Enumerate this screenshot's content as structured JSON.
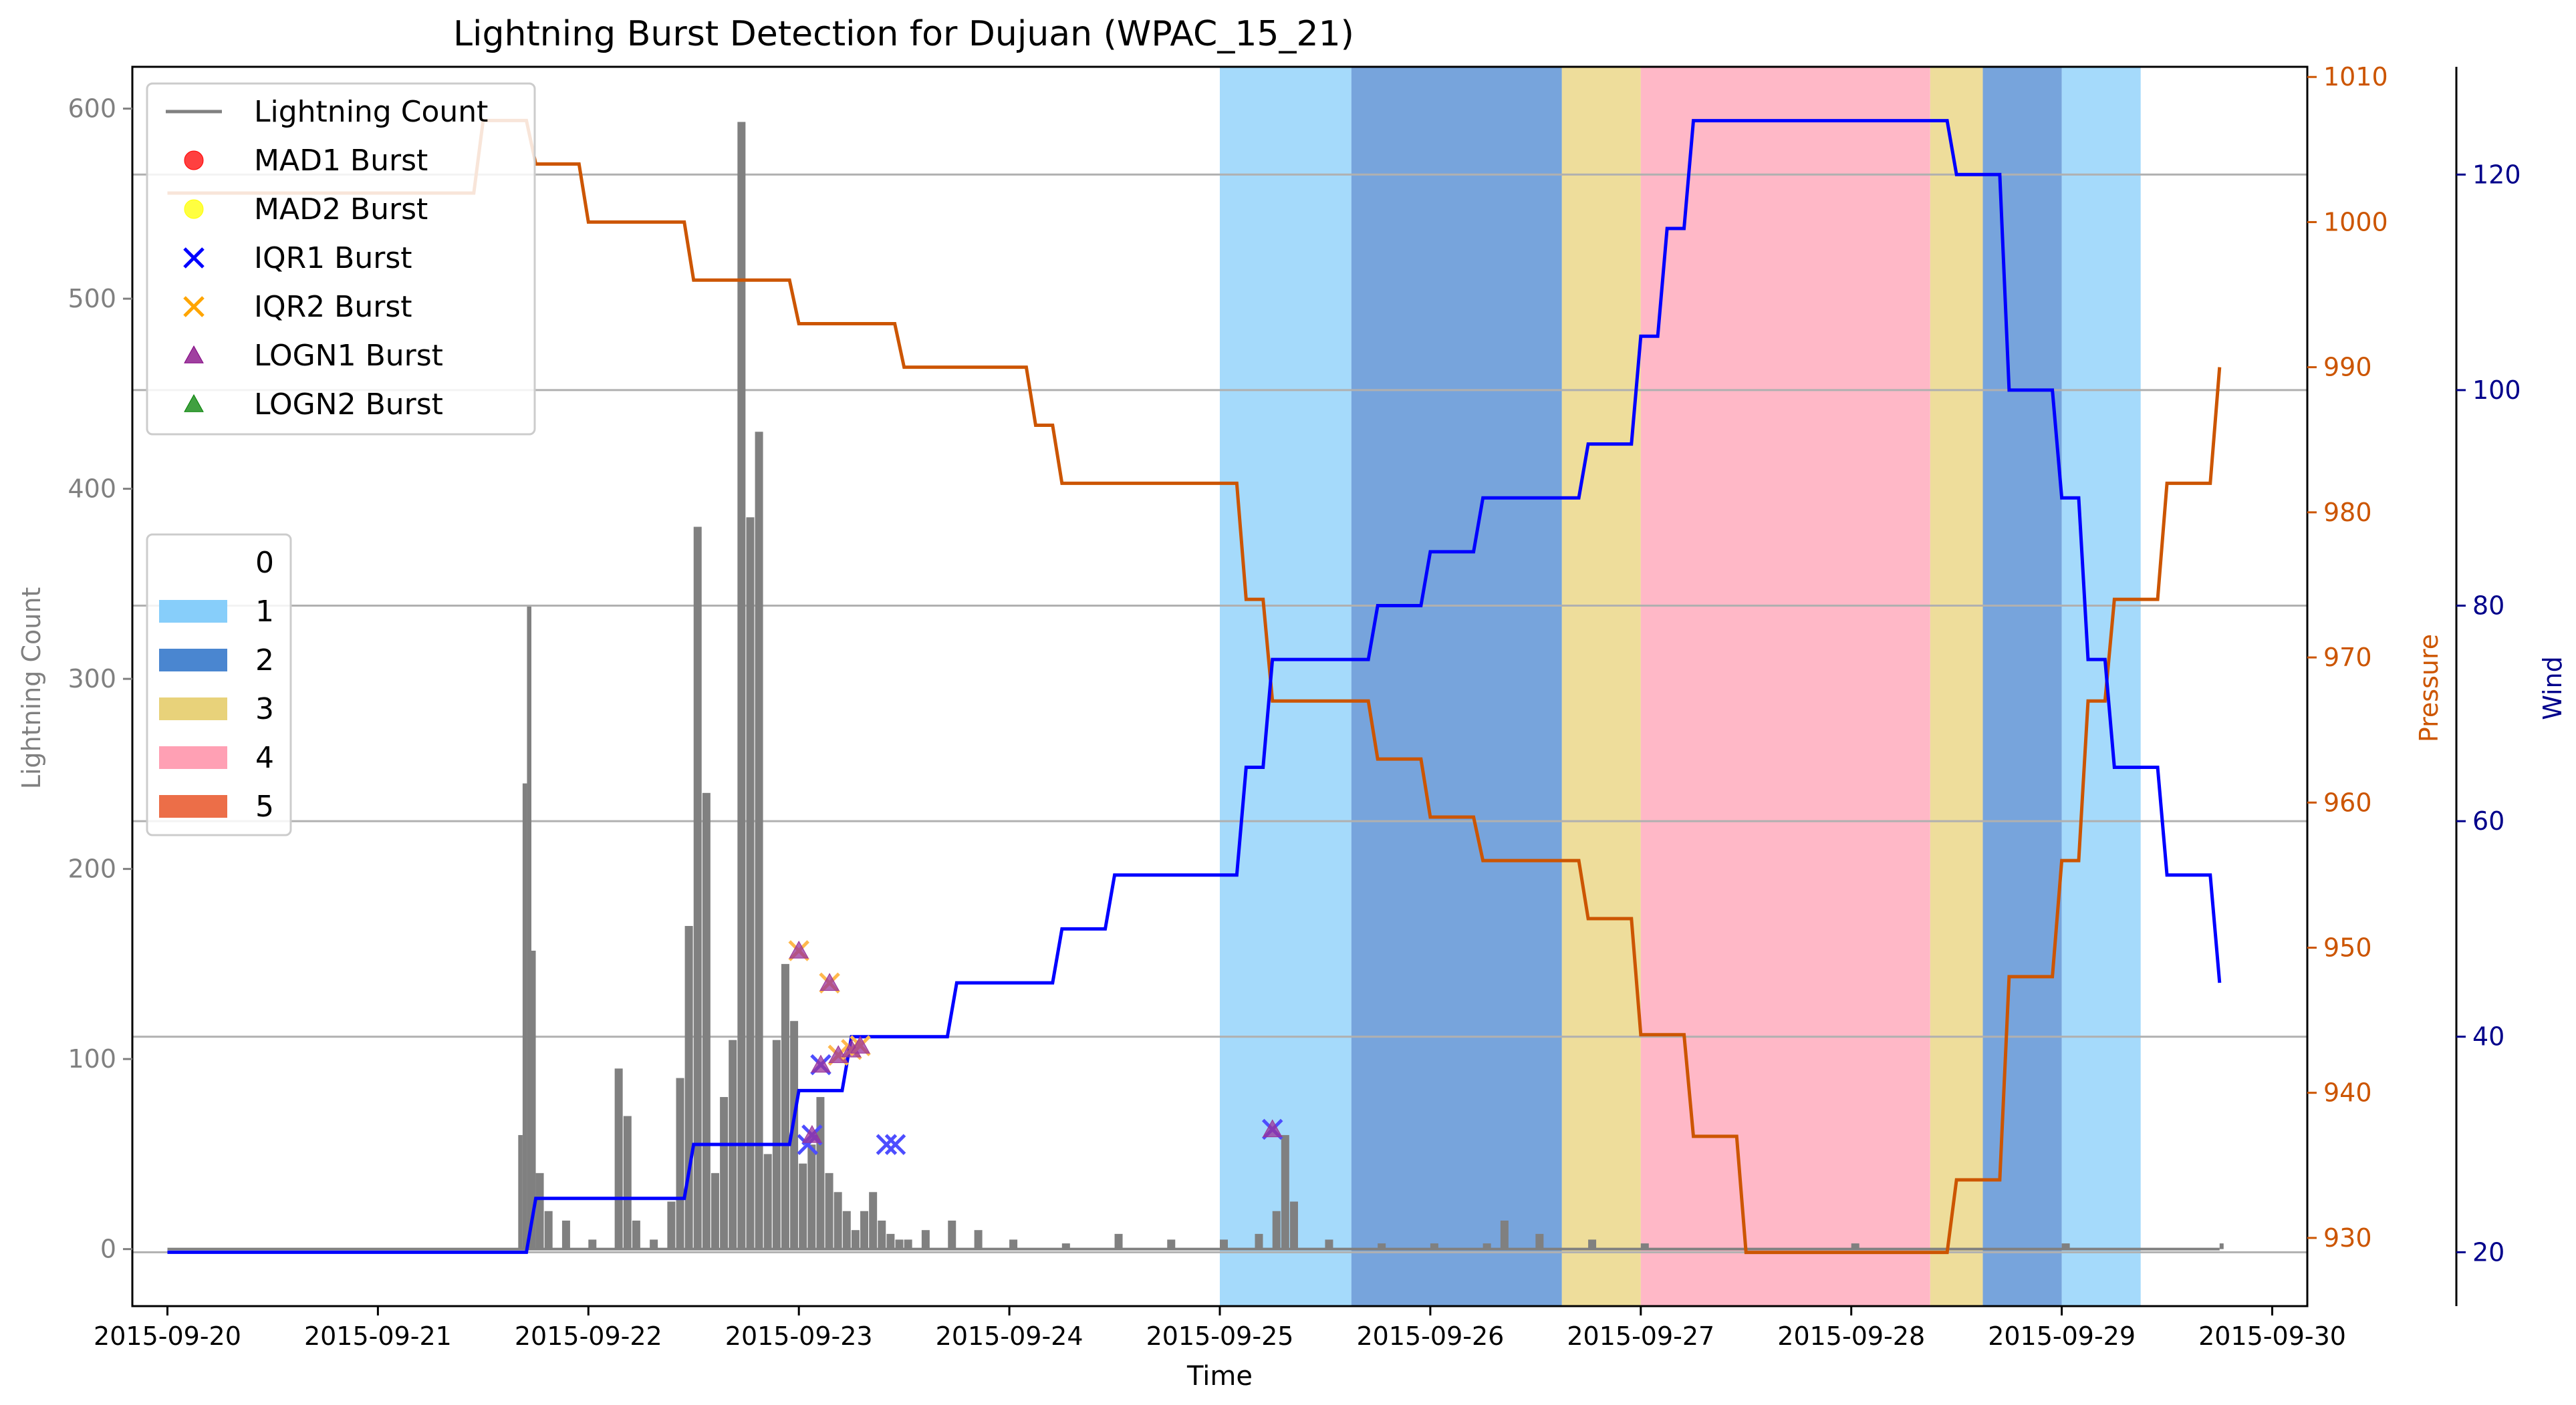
{
  "chart_data": {
    "type": "line",
    "title": "Lightning Burst Detection for Dujuan (WPAC_15_21)",
    "xlabel": "Time",
    "x_ticks": [
      "2015-09-20",
      "2015-09-21",
      "2015-09-22",
      "2015-09-23",
      "2015-09-24",
      "2015-09-25",
      "2015-09-26",
      "2015-09-27",
      "2015-09-28",
      "2015-09-29",
      "2015-09-30"
    ],
    "x_range": [
      "2015-09-19T20:00",
      "2015-09-30T04:00"
    ],
    "axes": {
      "left": {
        "label": "Lightning Count",
        "range": [
          -30,
          622
        ],
        "ticks": [
          0,
          100,
          200,
          300,
          400,
          500,
          600
        ],
        "color": "#808080"
      },
      "right1": {
        "label": "Pressure",
        "range": [
          925.3,
          1010.7
        ],
        "ticks": [
          930,
          940,
          950,
          960,
          970,
          980,
          990,
          1000,
          1010
        ],
        "color": "#cc5500"
      },
      "right2": {
        "label": "Wind",
        "range": [
          15,
          130
        ],
        "ticks": [
          20,
          40,
          60,
          80,
          100,
          120
        ],
        "color": "#00008b"
      }
    },
    "grid": "horizontal lines at Wind ticks",
    "legend_top_left": [
      {
        "label": "Lightning Count",
        "marker": "line",
        "color": "#808080"
      },
      {
        "label": "MAD1 Burst",
        "marker": "circle",
        "color": "#ff0000"
      },
      {
        "label": "MAD2 Burst",
        "marker": "circle",
        "color": "#ffff00"
      },
      {
        "label": "IQR1 Burst",
        "marker": "x",
        "color": "#0000ff"
      },
      {
        "label": "IQR2 Burst",
        "marker": "x",
        "color": "#ffa500"
      },
      {
        "label": "LOGN1 Burst",
        "marker": "triangle",
        "color": "#800080"
      },
      {
        "label": "LOGN2 Burst",
        "marker": "triangle",
        "color": "#008000"
      }
    ],
    "legend_categories": [
      {
        "label": "0",
        "color": "#ffffff"
      },
      {
        "label": "1",
        "color": "#87cefa"
      },
      {
        "label": "2",
        "color": "#4a86d0"
      },
      {
        "label": "3",
        "color": "#e8d27a"
      },
      {
        "label": "4",
        "color": "#ffa0b4"
      },
      {
        "label": "5",
        "color": "#ec6e48"
      }
    ],
    "category_spans": [
      {
        "start": "2015-09-25T00:00",
        "end": "2015-09-25T15:00",
        "category": 1
      },
      {
        "start": "2015-09-25T15:00",
        "end": "2015-09-26T15:00",
        "category": 2
      },
      {
        "start": "2015-09-26T15:00",
        "end": "2015-09-27T00:00",
        "category": 3
      },
      {
        "start": "2015-09-27T00:00",
        "end": "2015-09-28T09:00",
        "category": 4
      },
      {
        "start": "2015-09-28T09:00",
        "end": "2015-09-28T15:00",
        "category": 3
      },
      {
        "start": "2015-09-28T15:00",
        "end": "2015-09-29T00:00",
        "category": 2
      },
      {
        "start": "2015-09-29T00:00",
        "end": "2015-09-29T09:00",
        "category": 1
      }
    ],
    "pressure_series": {
      "name": "Pressure",
      "color": "#cc5500",
      "x": [
        "2015-09-20T00:00",
        "2015-09-21T06:00",
        "2015-09-21T12:00",
        "2015-09-21T18:00",
        "2015-09-22T00:00",
        "2015-09-22T06:00",
        "2015-09-22T12:00",
        "2015-09-22T18:00",
        "2015-09-23T00:00",
        "2015-09-23T06:00",
        "2015-09-23T12:00",
        "2015-09-23T18:00",
        "2015-09-24T00:00",
        "2015-09-24T03:00",
        "2015-09-24T06:00",
        "2015-09-24T12:00",
        "2015-09-24T18:00",
        "2015-09-25T00:00",
        "2015-09-25T03:00",
        "2015-09-25T06:00",
        "2015-09-25T12:00",
        "2015-09-25T18:00",
        "2015-09-26T00:00",
        "2015-09-26T06:00",
        "2015-09-26T12:00",
        "2015-09-26T18:00",
        "2015-09-27T00:00",
        "2015-09-27T03:00",
        "2015-09-27T06:00",
        "2015-09-27T12:00",
        "2015-09-27T18:00",
        "2015-09-28T00:00",
        "2015-09-28T06:00",
        "2015-09-28T12:00",
        "2015-09-28T18:00",
        "2015-09-29T00:00",
        "2015-09-29T03:00",
        "2015-09-29T06:00",
        "2015-09-29T12:00",
        "2015-09-29T18:00"
      ],
      "values": [
        1002,
        1002,
        1007,
        1004,
        1000,
        1000,
        996,
        996,
        993,
        993,
        990,
        990,
        990,
        986,
        982,
        982,
        982,
        982,
        974,
        967,
        967,
        963,
        959,
        956,
        956,
        952,
        944,
        944,
        937,
        929,
        929,
        929,
        929,
        934,
        948,
        956,
        967,
        974,
        982,
        990
      ]
    },
    "wind_series": {
      "name": "Wind",
      "color": "#0000ff",
      "x": [
        "2015-09-20T00:00",
        "2015-09-21T06:00",
        "2015-09-21T12:00",
        "2015-09-21T18:00",
        "2015-09-22T00:00",
        "2015-09-22T06:00",
        "2015-09-22T12:00",
        "2015-09-22T18:00",
        "2015-09-23T00:00",
        "2015-09-23T06:00",
        "2015-09-23T12:00",
        "2015-09-23T18:00",
        "2015-09-24T00:00",
        "2015-09-24T03:00",
        "2015-09-24T06:00",
        "2015-09-24T12:00",
        "2015-09-24T18:00",
        "2015-09-25T00:00",
        "2015-09-25T03:00",
        "2015-09-25T06:00",
        "2015-09-25T12:00",
        "2015-09-25T18:00",
        "2015-09-26T00:00",
        "2015-09-26T06:00",
        "2015-09-26T12:00",
        "2015-09-26T18:00",
        "2015-09-27T00:00",
        "2015-09-27T03:00",
        "2015-09-27T06:00",
        "2015-09-27T12:00",
        "2015-09-27T18:00",
        "2015-09-28T00:00",
        "2015-09-28T06:00",
        "2015-09-28T12:00",
        "2015-09-28T18:00",
        "2015-09-29T00:00",
        "2015-09-29T03:00",
        "2015-09-29T06:00",
        "2015-09-29T12:00",
        "2015-09-29T18:00"
      ],
      "values": [
        20,
        20,
        20,
        25,
        25,
        25,
        30,
        30,
        35,
        40,
        40,
        45,
        45,
        45,
        50,
        55,
        55,
        55,
        65,
        75,
        75,
        80,
        85,
        90,
        90,
        95,
        105,
        115,
        125,
        125,
        125,
        125,
        125,
        120,
        100,
        90,
        75,
        65,
        55,
        45
      ]
    },
    "lightning_count": {
      "name": "Lightning Count",
      "color": "#808080",
      "x": [
        "2015-09-20T00:00",
        "2015-09-21T15:00",
        "2015-09-21T16:00",
        "2015-09-21T16:30",
        "2015-09-21T17:00",
        "2015-09-21T17:30",
        "2015-09-21T18:00",
        "2015-09-21T19:00",
        "2015-09-21T21:00",
        "2015-09-22T00:00",
        "2015-09-22T03:00",
        "2015-09-22T04:00",
        "2015-09-22T05:00",
        "2015-09-22T07:00",
        "2015-09-22T09:00",
        "2015-09-22T10:00",
        "2015-09-22T11:00",
        "2015-09-22T12:00",
        "2015-09-22T13:00",
        "2015-09-22T14:00",
        "2015-09-22T15:00",
        "2015-09-22T16:00",
        "2015-09-22T17:00",
        "2015-09-22T18:00",
        "2015-09-22T19:00",
        "2015-09-22T20:00",
        "2015-09-22T21:00",
        "2015-09-22T22:00",
        "2015-09-22T23:00",
        "2015-09-23T00:00",
        "2015-09-23T01:00",
        "2015-09-23T02:00",
        "2015-09-23T03:00",
        "2015-09-23T04:00",
        "2015-09-23T05:00",
        "2015-09-23T06:00",
        "2015-09-23T07:00",
        "2015-09-23T08:00",
        "2015-09-23T09:00",
        "2015-09-23T10:00",
        "2015-09-23T11:00",
        "2015-09-23T12:00",
        "2015-09-23T14:00",
        "2015-09-23T17:00",
        "2015-09-23T20:00",
        "2015-09-24T00:00",
        "2015-09-24T06:00",
        "2015-09-24T12:00",
        "2015-09-24T18:00",
        "2015-09-25T00:00",
        "2015-09-25T04:00",
        "2015-09-25T06:00",
        "2015-09-25T07:00",
        "2015-09-25T08:00",
        "2015-09-25T12:00",
        "2015-09-25T18:00",
        "2015-09-26T00:00",
        "2015-09-26T06:00",
        "2015-09-26T08:00",
        "2015-09-26T12:00",
        "2015-09-26T18:00",
        "2015-09-27T00:00",
        "2015-09-28T00:00",
        "2015-09-29T00:00",
        "2015-09-29T18:00"
      ],
      "values": [
        0,
        0,
        60,
        245,
        338,
        157,
        40,
        20,
        15,
        5,
        95,
        70,
        15,
        5,
        25,
        90,
        170,
        380,
        240,
        40,
        80,
        110,
        593,
        385,
        430,
        50,
        110,
        150,
        120,
        45,
        55,
        80,
        40,
        30,
        20,
        10,
        20,
        30,
        15,
        8,
        5,
        5,
        10,
        15,
        10,
        5,
        3,
        8,
        5,
        5,
        8,
        20,
        60,
        25,
        5,
        3,
        3,
        3,
        15,
        8,
        5,
        3,
        3,
        3,
        3
      ]
    },
    "bursts": [
      {
        "time": "2015-09-23T00:00",
        "value": 157,
        "methods": [
          "IQR2",
          "LOGN1"
        ]
      },
      {
        "time": "2015-09-23T01:00",
        "value": 55,
        "methods": [
          "IQR1"
        ]
      },
      {
        "time": "2015-09-23T01:30",
        "value": 60,
        "methods": [
          "IQR1",
          "LOGN1"
        ]
      },
      {
        "time": "2015-09-23T02:30",
        "value": 97,
        "methods": [
          "IQR1",
          "LOGN1"
        ]
      },
      {
        "time": "2015-09-23T03:30",
        "value": 140,
        "methods": [
          "IQR2",
          "LOGN1"
        ]
      },
      {
        "time": "2015-09-23T04:30",
        "value": 102,
        "methods": [
          "IQR2",
          "LOGN1"
        ]
      },
      {
        "time": "2015-09-23T06:00",
        "value": 105,
        "methods": [
          "IQR2",
          "LOGN1"
        ]
      },
      {
        "time": "2015-09-23T07:00",
        "value": 107,
        "methods": [
          "IQR2",
          "LOGN1"
        ]
      },
      {
        "time": "2015-09-23T10:00",
        "value": 55,
        "methods": [
          "IQR1"
        ]
      },
      {
        "time": "2015-09-23T11:00",
        "value": 55,
        "methods": [
          "IQR1"
        ]
      },
      {
        "time": "2015-09-25T06:00",
        "value": 63,
        "methods": [
          "IQR1",
          "LOGN1"
        ]
      }
    ]
  }
}
